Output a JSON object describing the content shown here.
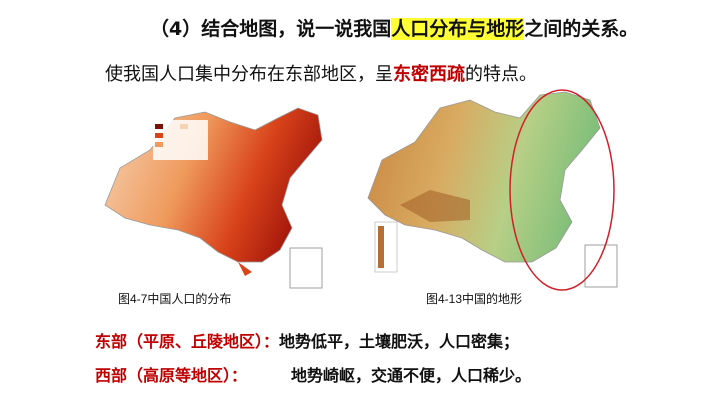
{
  "title": {
    "prefix": "（4）结合地图，说一说我国",
    "highlight": "人口分布与地形",
    "suffix": "之间的关系。"
  },
  "statement": {
    "prefix": "使我国人口集中分布在东部地区，呈",
    "emphasis": "东密西疏",
    "suffix": "的特点。"
  },
  "figures": [
    {
      "caption": "图4-7中国人口的分布"
    },
    {
      "caption": "图4-13中国的地形"
    }
  ],
  "conclusions": [
    {
      "region": "东部（平原、丘陵地区）：",
      "text": "地势低平，土壤肥沃，人口密集；"
    },
    {
      "region": "西部（高原等地区）：",
      "text": "地势崎岖，交通不便，人口稀少。"
    }
  ]
}
